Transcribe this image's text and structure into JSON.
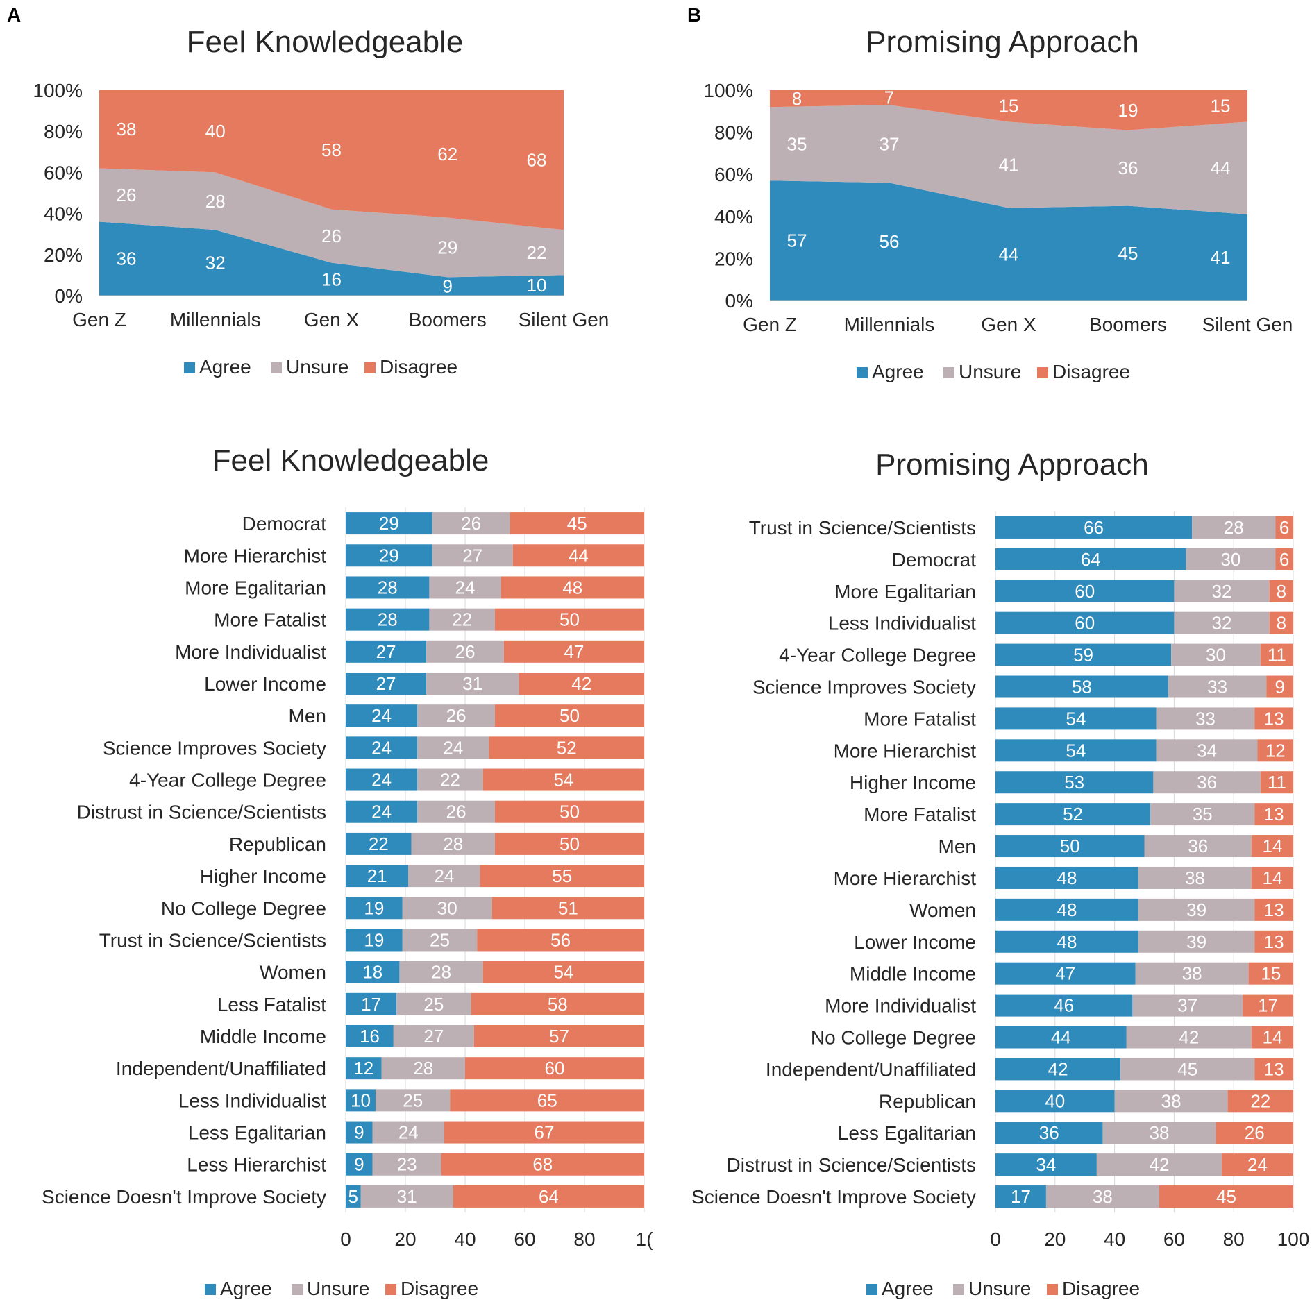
{
  "panels": {
    "a": "A",
    "b": "B"
  },
  "colors": {
    "agree": "#2E8BBB",
    "unsure": "#BDB0B4",
    "disagree": "#E57A5E",
    "grid": "#D9D9D9",
    "axis": "#BFBFBF"
  },
  "chart_data": [
    {
      "type": "area",
      "stacked": true,
      "title": "Feel Knowledgeable",
      "categories": [
        "Gen Z",
        "Millennials",
        "Gen X",
        "Boomers",
        "Silent Gen"
      ],
      "series": [
        {
          "name": "Agree",
          "values": [
            36,
            32,
            16,
            9,
            10
          ]
        },
        {
          "name": "Unsure",
          "values": [
            26,
            28,
            26,
            29,
            22
          ]
        },
        {
          "name": "Disagree",
          "values": [
            38,
            40,
            58,
            62,
            68
          ]
        }
      ],
      "ylim": [
        0,
        100
      ],
      "yticks": [
        "0%",
        "20%",
        "40%",
        "60%",
        "80%",
        "100%"
      ],
      "legend": [
        "Agree",
        "Unsure",
        "Disagree"
      ],
      "legend_position": "bottom"
    },
    {
      "type": "area",
      "stacked": true,
      "title": "Promising Approach",
      "categories": [
        "Gen Z",
        "Millennials",
        "Gen X",
        "Boomers",
        "Silent Gen"
      ],
      "series": [
        {
          "name": "Agree",
          "values": [
            57,
            56,
            44,
            45,
            41
          ]
        },
        {
          "name": "Unsure",
          "values": [
            35,
            37,
            41,
            36,
            44
          ]
        },
        {
          "name": "Disagree",
          "values": [
            8,
            7,
            15,
            19,
            15
          ]
        }
      ],
      "ylim": [
        0,
        100
      ],
      "yticks": [
        "0%",
        "20%",
        "40%",
        "60%",
        "80%",
        "100%"
      ],
      "legend": [
        "Agree",
        "Unsure",
        "Disagree"
      ],
      "legend_position": "bottom"
    },
    {
      "type": "bar",
      "orientation": "horizontal",
      "stacked": true,
      "title": "Feel Knowledgeable",
      "categories": [
        "Democrat",
        "More Hierarchist",
        "More Egalitarian",
        "More Fatalist",
        "More Individualist",
        "Lower Income",
        "Men",
        "Science Improves Society",
        "4-Year College Degree",
        "Distrust in Science/Scientists",
        "Republican",
        "Higher Income",
        "No College Degree",
        "Trust in Science/Scientists",
        "Women",
        "Less Fatalist",
        "Middle Income",
        "Independent/Unaffiliated",
        "Less Individualist",
        "Less Egalitarian",
        "Less Hierarchist",
        "Science Doesn't Improve Society"
      ],
      "series": [
        {
          "name": "Agree",
          "values": [
            29,
            29,
            28,
            28,
            27,
            27,
            24,
            24,
            24,
            24,
            22,
            21,
            19,
            19,
            18,
            17,
            16,
            12,
            10,
            9,
            9,
            5
          ]
        },
        {
          "name": "Unsure",
          "values": [
            26,
            27,
            24,
            22,
            26,
            31,
            26,
            24,
            22,
            26,
            28,
            24,
            30,
            25,
            28,
            25,
            27,
            28,
            25,
            24,
            23,
            31
          ]
        },
        {
          "name": "Disagree",
          "values": [
            45,
            44,
            48,
            50,
            47,
            42,
            50,
            52,
            54,
            50,
            50,
            55,
            51,
            56,
            54,
            58,
            57,
            60,
            65,
            67,
            68,
            64
          ]
        }
      ],
      "xlim": [
        0,
        100
      ],
      "xticks": [
        "0",
        "20",
        "40",
        "60",
        "80",
        "1("
      ],
      "legend": [
        "Agree",
        "Unsure",
        "Disagree"
      ],
      "legend_position": "bottom"
    },
    {
      "type": "bar",
      "orientation": "horizontal",
      "stacked": true,
      "title": "Promising Approach",
      "categories": [
        "Trust in Science/Scientists",
        "Democrat",
        "More Egalitarian",
        "Less Individualist",
        "4-Year College Degree",
        "Science Improves Society",
        "More Fatalist",
        "More Hierarchist",
        "Higher Income",
        "More Fatalist",
        "Men",
        "More Hierarchist",
        "Women",
        "Lower Income",
        "Middle Income",
        "More Individualist",
        "No College Degree",
        "Independent/Unaffiliated",
        "Republican",
        "Less Egalitarian",
        "Distrust in Science/Scientists",
        "Science Doesn't Improve Society"
      ],
      "series": [
        {
          "name": "Agree",
          "values": [
            66,
            64,
            60,
            60,
            59,
            58,
            54,
            54,
            53,
            52,
            50,
            48,
            48,
            48,
            47,
            46,
            44,
            42,
            40,
            36,
            34,
            17
          ]
        },
        {
          "name": "Unsure",
          "values": [
            28,
            30,
            32,
            32,
            30,
            33,
            33,
            34,
            36,
            35,
            36,
            38,
            39,
            39,
            38,
            37,
            42,
            45,
            38,
            38,
            42,
            38
          ]
        },
        {
          "name": "Disagree",
          "values": [
            6,
            6,
            8,
            8,
            11,
            9,
            13,
            12,
            11,
            13,
            14,
            14,
            13,
            13,
            15,
            17,
            14,
            13,
            22,
            26,
            24,
            45
          ]
        }
      ],
      "xlim": [
        0,
        100
      ],
      "xticks": [
        "0",
        "20",
        "40",
        "60",
        "80",
        "100"
      ],
      "legend": [
        "Agree",
        "Unsure",
        "Disagree"
      ],
      "legend_position": "bottom"
    }
  ]
}
